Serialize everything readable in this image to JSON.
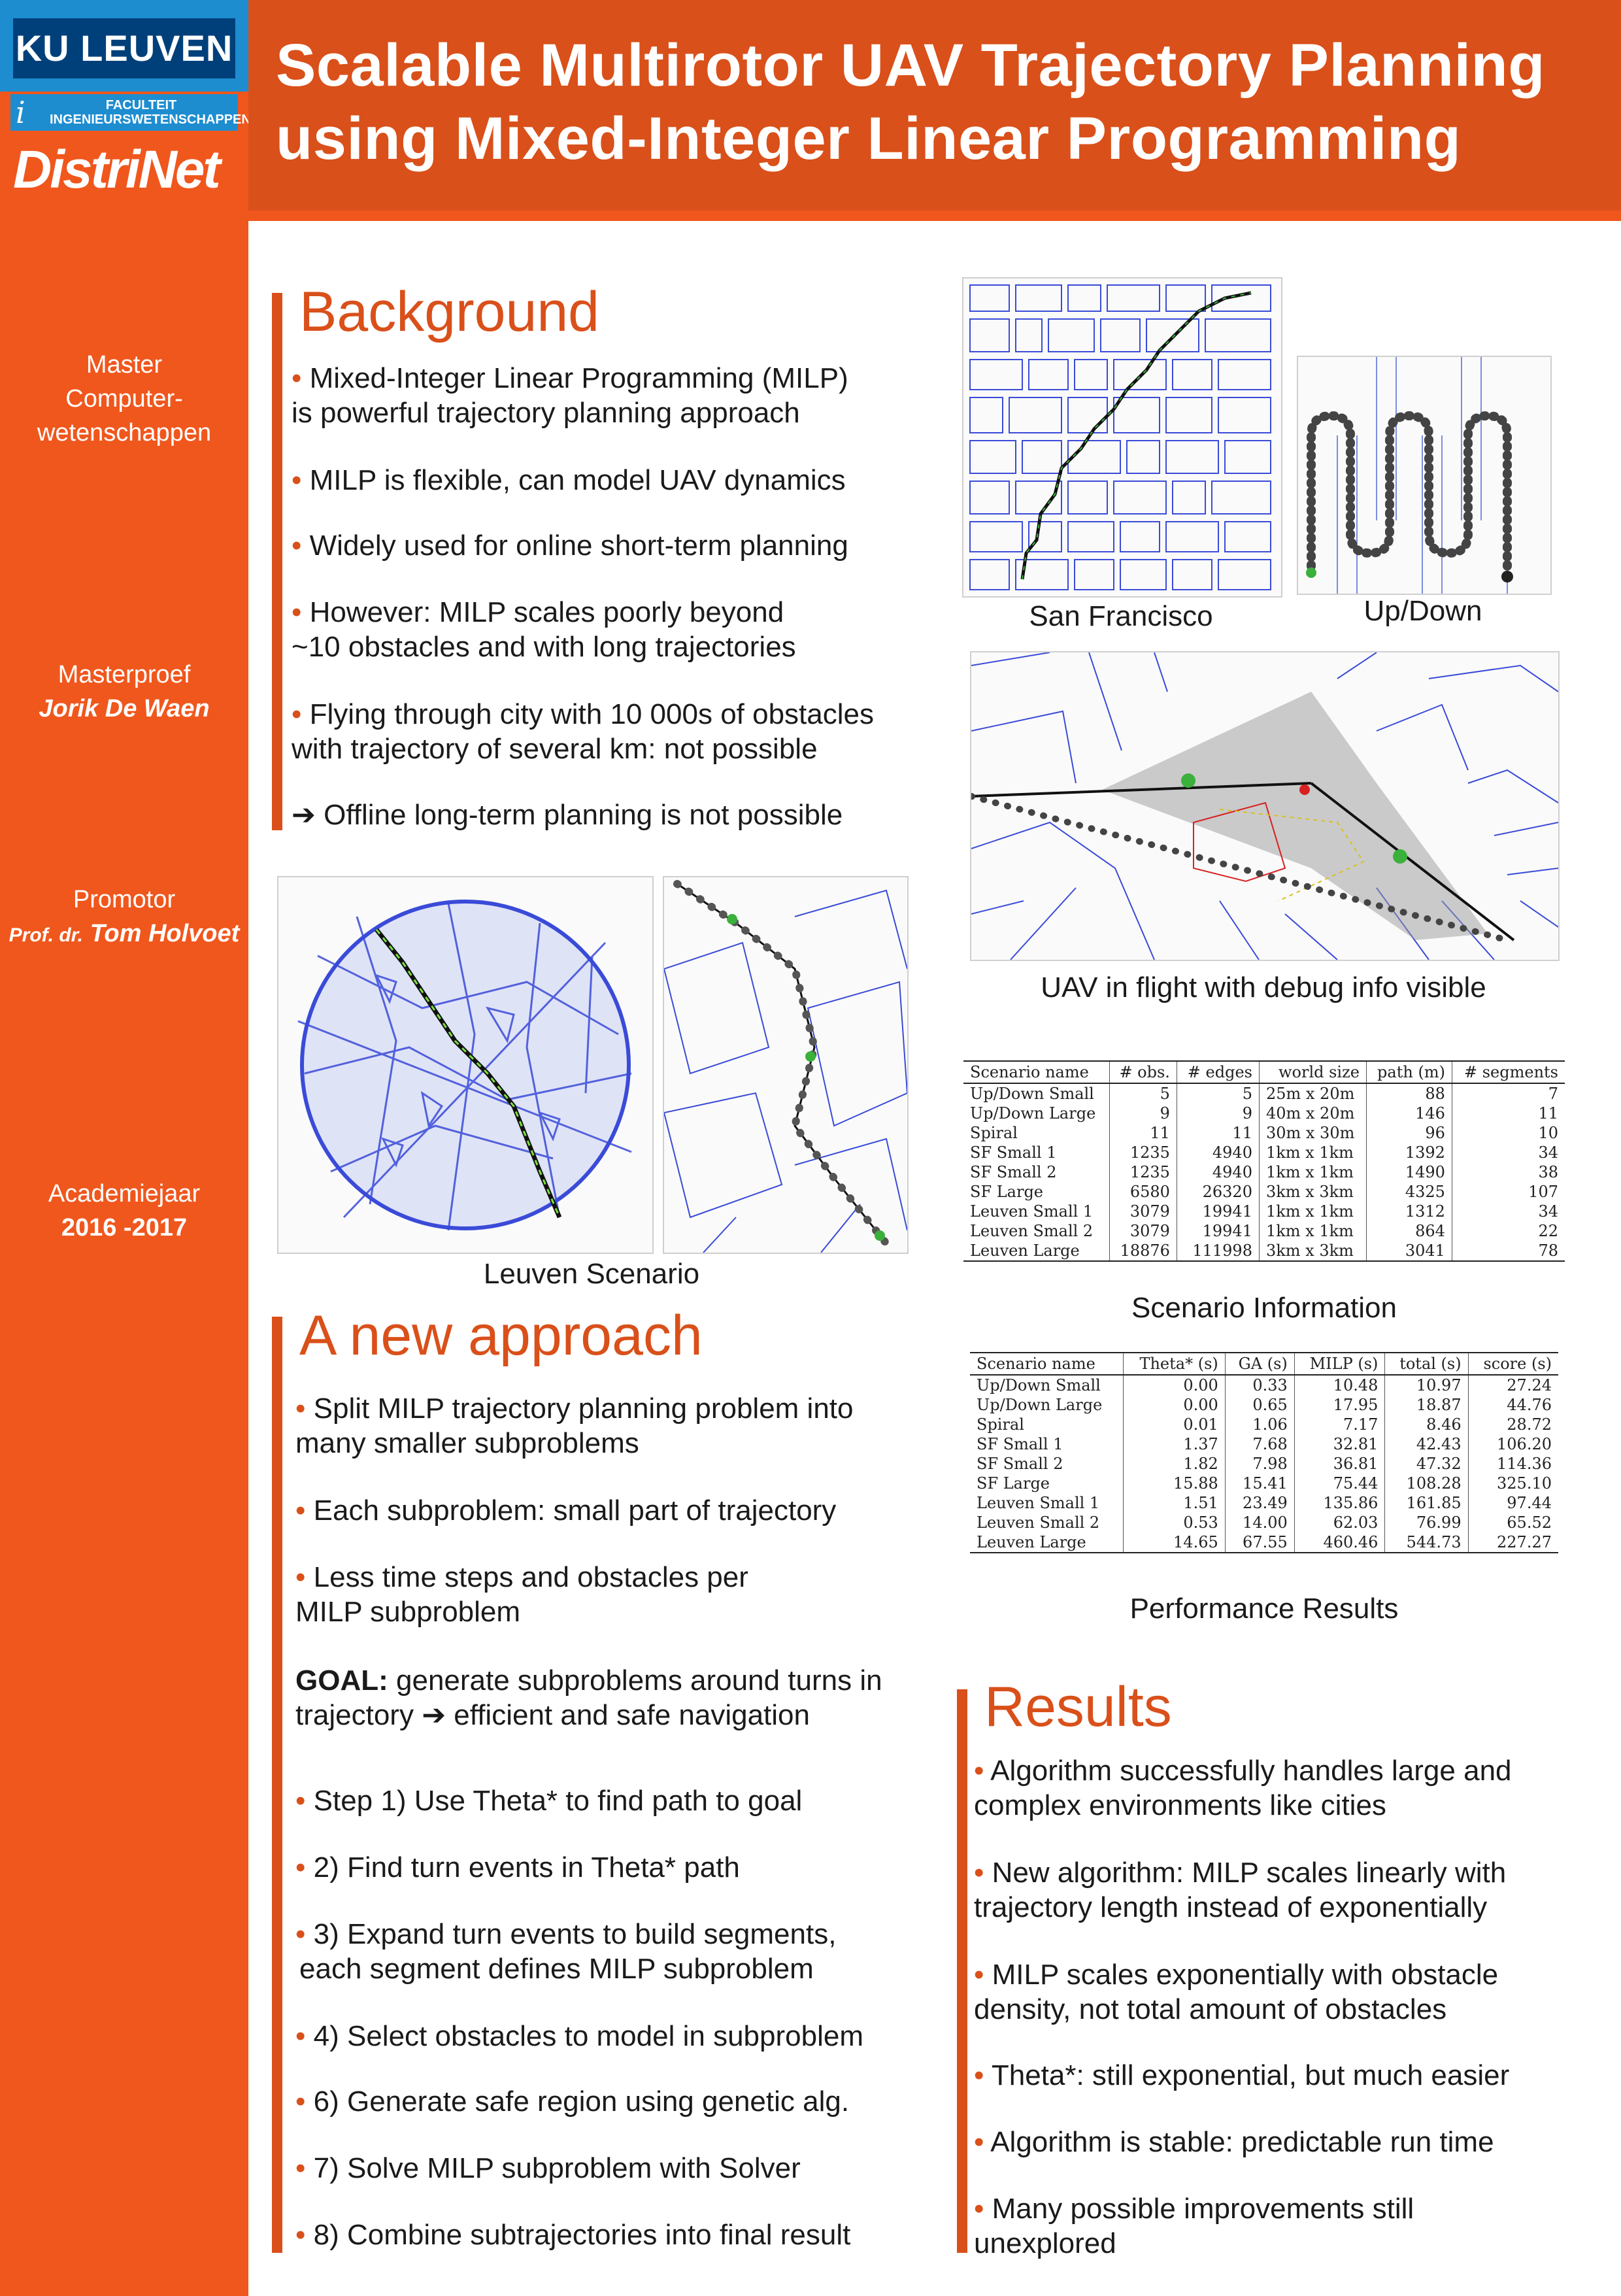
{
  "header": {
    "title_line1": "Scalable Multirotor UAV Trajectory Planning",
    "title_line2": "using Mixed-Integer Linear Programming"
  },
  "logos": {
    "kuleuven": "KU LEUVEN",
    "faculty_line1": "FACULTEIT",
    "faculty_line2": "INGENIEURSWETENSCHAPPEN",
    "distrinet": "DistriNet"
  },
  "sidebar": {
    "program_line1": "Master",
    "program_line2": "Computer-",
    "program_line3": "wetenschappen",
    "thesis_label": "Masterproef",
    "student": "Jorik De Waen",
    "promotor_label": "Promotor",
    "promotor_prefix": "Prof. dr.",
    "promotor_name": "Tom Holvoet",
    "year_label": "Academiejaar",
    "year": "2016 -2017"
  },
  "background": {
    "title": "Background",
    "b1_l1": "Mixed-Integer Linear Programming (MILP)",
    "b1_l2": "is powerful trajectory planning approach",
    "b2": "MILP is flexible, can model UAV  dynamics",
    "b3": "Widely used for online short-term planning",
    "b4_l1": "However: MILP scales poorly beyond",
    "b4_l2": "~10 obstacles and with long trajectories",
    "b5_l1": "Flying through city with 10 000s of obstacles",
    "b5_l2": "with trajectory of several km: not possible",
    "b6_arrow": "➔",
    "b6": "Offline long-term planning is not possible"
  },
  "approach": {
    "title": "A new approach",
    "b1_l1": "Split MILP trajectory planning problem into",
    "b1_l2": "many smaller subproblems",
    "b2": "Each subproblem: small part of trajectory",
    "b3_l1": "Less time steps and obstacles per",
    "b3_l2": "MILP subproblem",
    "goal_bold": "GOAL:",
    "goal_l1": "generate subproblems around turns in",
    "goal_l2a": "trajectory",
    "goal_arrow": "➔",
    "goal_l2b": "efficient and safe navigation",
    "s1": "Step 1) Use Theta* to find path to goal",
    "s2": "2)  Find turn events in Theta* path",
    "s3_l1": "3)  Expand turn events to build segments,",
    "s3_l2": "each segment defines MILP subproblem",
    "s4": "4) Select obstacles to model in subproblem",
    "s6": "6) Generate safe region using genetic alg.",
    "s7": "7) Solve MILP subproblem with Solver",
    "s8": "8) Combine subtrajectories into final result"
  },
  "results": {
    "title": "Results",
    "r1_l1": "Algorithm successfully handles large and",
    "r1_l2": "complex environments like cities",
    "r2_l1": "New algorithm: MILP scales linearly with",
    "r2_l2": "trajectory length instead of exponentially",
    "r3_l1": "MILP scales exponentially with obstacle",
    "r3_l2": "density, not total amount of obstacles",
    "r4": "Theta*: still exponential, but much easier",
    "r5": "Algorithm is stable: predictable run time",
    "r6_l1": "Many possible improvements still",
    "r6_l2": "unexplored"
  },
  "figures": {
    "sf_caption": "San Francisco",
    "updown_caption": "Up/Down",
    "flight_caption": "UAV in flight with debug info visible",
    "leuven_caption": "Leuven Scenario"
  },
  "scenario_table": {
    "caption": "Scenario Information",
    "headers": [
      "Scenario name",
      "# obs.",
      "# edges",
      "world size",
      "path (m)",
      "# segments"
    ],
    "rows": [
      [
        "Up/Down Small",
        "5",
        "5",
        "25m x 20m",
        "88",
        "7"
      ],
      [
        "Up/Down Large",
        "9",
        "9",
        "40m x 20m",
        "146",
        "11"
      ],
      [
        "Spiral",
        "11",
        "11",
        "30m x 30m",
        "96",
        "10"
      ],
      [
        "SF Small 1",
        "1235",
        "4940",
        "1km x 1km",
        "1392",
        "34"
      ],
      [
        "SF Small 2",
        "1235",
        "4940",
        "1km x 1km",
        "1490",
        "38"
      ],
      [
        "SF Large",
        "6580",
        "26320",
        "3km x 3km",
        "4325",
        "107"
      ],
      [
        "Leuven Small 1",
        "3079",
        "19941",
        "1km x 1km",
        "1312",
        "34"
      ],
      [
        "Leuven Small 2",
        "3079",
        "19941",
        "1km x 1km",
        "864",
        "22"
      ],
      [
        "Leuven Large",
        "18876",
        "111998",
        "3km x 3km",
        "3041",
        "78"
      ]
    ]
  },
  "performance_table": {
    "caption": "Performance Results",
    "headers": [
      "Scenario name",
      "Theta* (s)",
      "GA (s)",
      "MILP (s)",
      "total (s)",
      "score (s)"
    ],
    "rows": [
      [
        "Up/Down Small",
        "0.00",
        "0.33",
        "10.48",
        "10.97",
        "27.24"
      ],
      [
        "Up/Down Large",
        "0.00",
        "0.65",
        "17.95",
        "18.87",
        "44.76"
      ],
      [
        "Spiral",
        "0.01",
        "1.06",
        "7.17",
        "8.46",
        "28.72"
      ],
      [
        "SF Small 1",
        "1.37",
        "7.68",
        "32.81",
        "42.43",
        "106.20"
      ],
      [
        "SF Small 2",
        "1.82",
        "7.98",
        "36.81",
        "47.32",
        "114.36"
      ],
      [
        "SF Large",
        "15.88",
        "15.41",
        "75.44",
        "108.28",
        "325.10"
      ],
      [
        "Leuven Small 1",
        "1.51",
        "23.49",
        "135.86",
        "161.85",
        "97.44"
      ],
      [
        "Leuven Small 2",
        "0.53",
        "14.00",
        "62.03",
        "76.99",
        "65.52"
      ],
      [
        "Leuven Large",
        "14.65",
        "67.55",
        "460.46",
        "544.73",
        "227.27"
      ]
    ]
  }
}
